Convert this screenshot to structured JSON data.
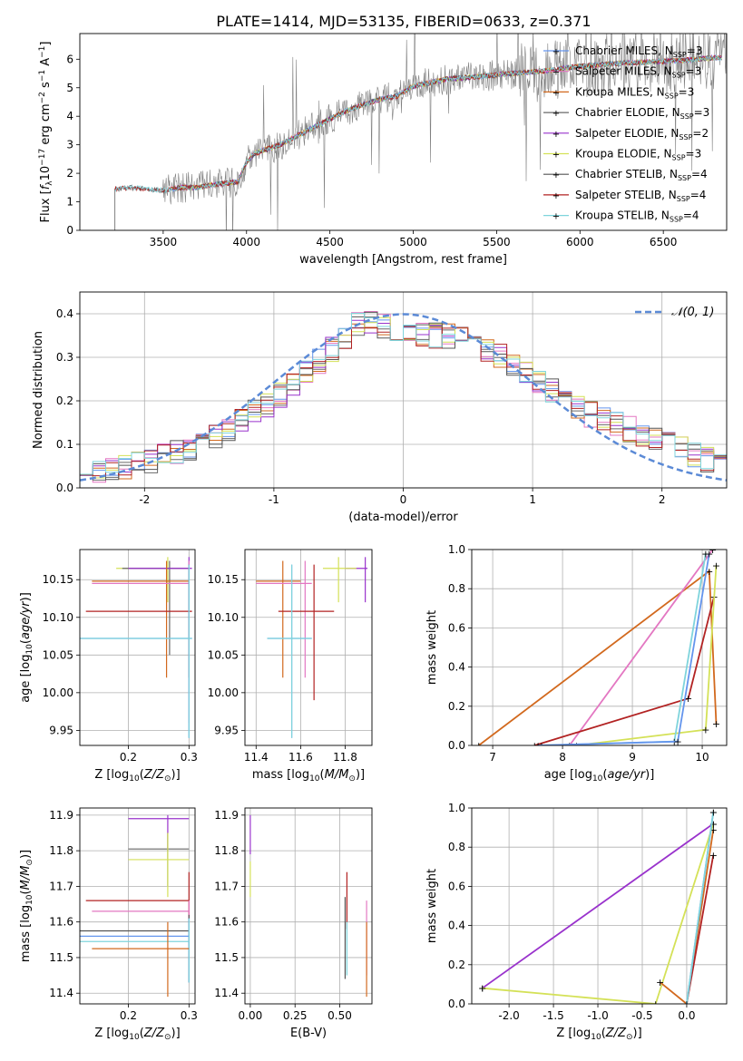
{
  "figure_title": "PLATE=1414, MJD=53135, FIBERID=0633, z=0.371",
  "colors": {
    "Chabrier MILES": "#6495ed",
    "Salpeter MILES": "#e377c2",
    "Kroupa MILES": "#d2691e",
    "Chabrier ELODIE": "#696969",
    "Salpeter ELODIE": "#9932cc",
    "Kroupa ELODIE": "#d4e157",
    "Chabrier STELIB": "#555555",
    "Salpeter STELIB": "#b22222",
    "Kroupa STELIB": "#7fd4dc",
    "normal": "#5b8ad6",
    "grid": "#b0b0b0",
    "data": "#808080"
  },
  "chart_data": [
    {
      "id": "spectrum",
      "type": "line",
      "title": "PLATE=1414, MJD=53135, FIBERID=0633, z=0.371",
      "xlabel": "wavelength [Angstrom, rest frame]",
      "ylabel": "Flux [fλ10⁻¹⁷ erg cm⁻² s⁻¹ A⁻¹]",
      "xlim": [
        3000,
        6880
      ],
      "ylim": [
        0,
        6.9
      ],
      "xticks": [
        3500,
        4000,
        4500,
        5000,
        5500,
        6000,
        6500
      ],
      "yticks": [
        0,
        1,
        2,
        3,
        4,
        5,
        6
      ],
      "grid": false,
      "legend_position": "top-right",
      "continuum_points": [
        [
          3210,
          1.45
        ],
        [
          3300,
          1.5
        ],
        [
          3400,
          1.45
        ],
        [
          3500,
          1.4
        ],
        [
          3600,
          1.5
        ],
        [
          3700,
          1.5
        ],
        [
          3800,
          1.6
        ],
        [
          3950,
          1.7
        ],
        [
          4000,
          2.4
        ],
        [
          4050,
          2.7
        ],
        [
          4200,
          3.0
        ],
        [
          4400,
          3.6
        ],
        [
          4600,
          4.2
        ],
        [
          4800,
          4.6
        ],
        [
          4900,
          4.7
        ],
        [
          5000,
          5.05
        ],
        [
          5200,
          5.3
        ],
        [
          5400,
          5.4
        ],
        [
          5600,
          5.5
        ],
        [
          5800,
          5.6
        ],
        [
          6000,
          5.75
        ],
        [
          6200,
          5.85
        ],
        [
          6400,
          5.9
        ],
        [
          6600,
          5.95
        ],
        [
          6800,
          6.05
        ]
      ],
      "legend": [
        "Chabrier MILES, N_SSP=3",
        "Salpeter MILES, N_SSP=3",
        "Kroupa MILES, N_SSP=3",
        "Chabrier ELODIE, N_SSP=3",
        "Salpeter ELODIE, N_SSP=2",
        "Kroupa ELODIE, N_SSP=3",
        "Chabrier STELIB, N_SSP=4",
        "Salpeter STELIB, N_SSP=4",
        "Kroupa STELIB, N_SSP=4"
      ],
      "legend_labels": [
        {
          "name": "Chabrier MILES, N",
          "sub": "SSP",
          "tail": "=3"
        },
        {
          "name": "Salpeter MILES, N",
          "sub": "SSP",
          "tail": "=3"
        },
        {
          "name": "Kroupa MILES, N",
          "sub": "SSP",
          "tail": "=3"
        },
        {
          "name": "Chabrier ELODIE, N",
          "sub": "SSP",
          "tail": "=3"
        },
        {
          "name": "Salpeter ELODIE, N",
          "sub": "SSP",
          "tail": "=2"
        },
        {
          "name": "Kroupa ELODIE, N",
          "sub": "SSP",
          "tail": "=3"
        },
        {
          "name": "Chabrier STELIB, N",
          "sub": "SSP",
          "tail": "=4"
        },
        {
          "name": "Salpeter STELIB, N",
          "sub": "SSP",
          "tail": "=4"
        },
        {
          "name": "Kroupa STELIB, N",
          "sub": "SSP",
          "tail": "=4"
        }
      ]
    },
    {
      "id": "residuals",
      "type": "line",
      "xlabel": "(data-model)/error",
      "ylabel": "Normed distribution",
      "xlim": [
        -2.5,
        2.5
      ],
      "ylim": [
        0,
        0.45
      ],
      "xticks": [
        -2,
        -1,
        0,
        1,
        2
      ],
      "yticks": [
        0.0,
        0.1,
        0.2,
        0.3,
        0.4
      ],
      "grid": true,
      "legend": [
        "𝒩(0, 1)"
      ],
      "legend_position": "top-right",
      "histogram_envelope": [
        [
          -2.5,
          0.035
        ],
        [
          -2.0,
          0.055
        ],
        [
          -1.5,
          0.11
        ],
        [
          -1.0,
          0.2
        ],
        [
          -0.5,
          0.33
        ],
        [
          -0.3,
          0.39
        ],
        [
          0.0,
          0.35
        ],
        [
          0.5,
          0.35
        ],
        [
          1.0,
          0.25
        ],
        [
          1.5,
          0.16
        ],
        [
          2.0,
          0.11
        ],
        [
          2.5,
          0.045
        ]
      ]
    },
    {
      "id": "age_vs_Z",
      "type": "scatter",
      "xlabel": "Z [log10(Z/Z☉)]",
      "ylabel": "age [log10(age/yr)]",
      "xlim": [
        0.12,
        0.31
      ],
      "ylim": [
        9.93,
        10.19
      ],
      "xticks": [
        0.2,
        0.3
      ],
      "yticks": [
        9.95,
        10.0,
        10.05,
        10.1,
        10.15
      ],
      "grid": true,
      "points": [
        {
          "series": "Kroupa ELODIE",
          "x": 0.265,
          "y": 10.165,
          "xerr": [
            0.18,
            0.3
          ],
          "yerr": [
            10.12,
            10.18
          ]
        },
        {
          "series": "Chabrier ELODIE",
          "x": 0.268,
          "y": 10.165,
          "xerr": [
            0.19,
            0.3
          ],
          "yerr": [
            10.05,
            10.175
          ]
        },
        {
          "series": "Salpeter ELODIE",
          "x": 0.3,
          "y": 10.165,
          "xerr": [
            0.2,
            0.305
          ],
          "yerr": [
            10.02,
            10.18
          ]
        },
        {
          "series": "Kroupa MILES",
          "x": 0.263,
          "y": 10.148,
          "xerr": [
            0.14,
            0.3
          ],
          "yerr": [
            10.02,
            10.175
          ]
        },
        {
          "series": "Salpeter MILES",
          "x": 0.3,
          "y": 10.145,
          "xerr": [
            0.14,
            0.3
          ],
          "yerr": [
            9.96,
            10.175
          ]
        },
        {
          "series": "Salpeter STELIB",
          "x": 0.3,
          "y": 10.108,
          "xerr": [
            0.13,
            0.305
          ],
          "yerr": [
            10.02,
            10.17
          ]
        },
        {
          "series": "Chabrier MILES",
          "x": 0.3,
          "y": 10.072,
          "xerr": [
            0.12,
            0.305
          ],
          "yerr": [
            9.94,
            10.17
          ]
        },
        {
          "series": "Kroupa STELIB",
          "x": 0.3,
          "y": 10.072,
          "xerr": [
            0.12,
            0.305
          ],
          "yerr": [
            9.94,
            10.17
          ]
        }
      ]
    },
    {
      "id": "age_vs_mass",
      "type": "scatter",
      "xlabel": "mass [log10(M/M☉)]",
      "ylabel": "",
      "xlim": [
        11.35,
        11.92
      ],
      "ylim": [
        9.93,
        10.19
      ],
      "xticks": [
        11.4,
        11.6,
        11.8
      ],
      "yticks": [
        9.95,
        10.0,
        10.05,
        10.1,
        10.15
      ],
      "grid": true,
      "points": [
        {
          "series": "Salpeter ELODIE",
          "x": 11.89,
          "y": 10.165,
          "xerr": [
            11.8,
            11.9
          ],
          "yerr": [
            10.12,
            10.18
          ]
        },
        {
          "series": "Kroupa ELODIE",
          "x": 11.77,
          "y": 10.165,
          "xerr": [
            11.7,
            11.85
          ],
          "yerr": [
            10.12,
            10.18
          ]
        },
        {
          "series": "Kroupa MILES",
          "x": 11.52,
          "y": 10.148,
          "xerr": [
            11.4,
            11.6
          ],
          "yerr": [
            10.02,
            10.175
          ]
        },
        {
          "series": "Salpeter MILES",
          "x": 11.62,
          "y": 10.145,
          "xerr": [
            11.4,
            11.65
          ],
          "yerr": [
            10.02,
            10.175
          ]
        },
        {
          "series": "Salpeter STELIB",
          "x": 11.66,
          "y": 10.108,
          "xerr": [
            11.5,
            11.75
          ],
          "yerr": [
            9.99,
            10.17
          ]
        },
        {
          "series": "Chabrier MILES",
          "x": 11.56,
          "y": 10.072,
          "xerr": [
            11.45,
            11.65
          ],
          "yerr": [
            9.94,
            10.17
          ]
        },
        {
          "series": "Kroupa STELIB",
          "x": 11.56,
          "y": 10.072,
          "xerr": [
            11.45,
            11.65
          ],
          "yerr": [
            9.94,
            10.17
          ]
        }
      ]
    },
    {
      "id": "weight_vs_age",
      "type": "line",
      "xlabel": "age [log10(age/yr)]",
      "ylabel": "mass weight",
      "xlim": [
        6.7,
        10.35
      ],
      "ylim": [
        0,
        1.0
      ],
      "xticks": [
        7,
        8,
        9,
        10
      ],
      "yticks": [
        0.0,
        0.2,
        0.4,
        0.6,
        0.8,
        1.0
      ],
      "grid": true,
      "series": [
        {
          "name": "Kroupa MILES",
          "points": [
            [
              6.8,
              0.0
            ],
            [
              10.1,
              0.89
            ],
            [
              10.2,
              0.11
            ]
          ]
        },
        {
          "name": "Salpeter MILES",
          "points": [
            [
              8.1,
              0.0
            ],
            [
              10.15,
              1.0
            ]
          ]
        },
        {
          "name": "Salpeter STELIB",
          "points": [
            [
              7.6,
              0.0
            ],
            [
              9.8,
              0.24
            ],
            [
              10.17,
              0.76
            ]
          ]
        },
        {
          "name": "Kroupa ELODIE",
          "points": [
            [
              8.2,
              0.0
            ],
            [
              10.05,
              0.08
            ],
            [
              10.2,
              0.92
            ]
          ]
        },
        {
          "name": "Kroupa STELIB",
          "points": [
            [
              7.7,
              0.0
            ],
            [
              9.6,
              0.02
            ],
            [
              10.05,
              0.98
            ]
          ]
        },
        {
          "name": "Chabrier MILES",
          "points": [
            [
              7.65,
              0.0
            ],
            [
              9.65,
              0.02
            ],
            [
              10.1,
              0.98
            ]
          ]
        }
      ]
    },
    {
      "id": "mass_vs_Z",
      "type": "scatter",
      "xlabel": "Z [log10(Z/Z☉)]",
      "ylabel": "mass [log10(M/M☉)]",
      "xlim": [
        0.12,
        0.31
      ],
      "ylim": [
        11.37,
        11.92
      ],
      "xticks": [
        0.2,
        0.3
      ],
      "yticks": [
        11.4,
        11.5,
        11.6,
        11.7,
        11.8,
        11.9
      ],
      "grid": true,
      "points": [
        {
          "series": "Salpeter ELODIE",
          "x": 0.265,
          "y": 11.89,
          "xerr": [
            0.2,
            0.3
          ],
          "yerr": [
            11.8,
            11.9
          ]
        },
        {
          "series": "Chabrier ELODIE",
          "x": 0.265,
          "y": 11.805,
          "xerr": [
            0.2,
            0.3
          ],
          "yerr": [
            11.7,
            11.85
          ]
        },
        {
          "series": "Kroupa ELODIE",
          "x": 0.265,
          "y": 11.775,
          "xerr": [
            0.2,
            0.3
          ],
          "yerr": [
            11.67,
            11.85
          ]
        },
        {
          "series": "Salpeter STELIB",
          "x": 0.3,
          "y": 11.66,
          "xerr": [
            0.13,
            0.3
          ],
          "yerr": [
            11.58,
            11.74
          ]
        },
        {
          "series": "Salpeter MILES",
          "x": 0.3,
          "y": 11.63,
          "xerr": [
            0.14,
            0.3
          ],
          "yerr": [
            11.43,
            11.66
          ]
        },
        {
          "series": "Chabrier STELIB",
          "x": 0.3,
          "y": 11.575,
          "xerr": [
            0.12,
            0.3
          ],
          "yerr": [
            11.43,
            11.62
          ]
        },
        {
          "series": "Chabrier MILES",
          "x": 0.3,
          "y": 11.56,
          "xerr": [
            0.12,
            0.3
          ],
          "yerr": [
            11.43,
            11.61
          ]
        },
        {
          "series": "Kroupa STELIB",
          "x": 0.3,
          "y": 11.545,
          "xerr": [
            0.12,
            0.3
          ],
          "yerr": [
            11.43,
            11.61
          ]
        },
        {
          "series": "Kroupa MILES",
          "x": 0.265,
          "y": 11.525,
          "xerr": [
            0.14,
            0.3
          ],
          "yerr": [
            11.39,
            11.6
          ]
        }
      ]
    },
    {
      "id": "mass_vs_EBV",
      "type": "scatter",
      "xlabel": "E(B-V)",
      "ylabel": "",
      "xlim": [
        -0.03,
        0.68
      ],
      "ylim": [
        11.37,
        11.92
      ],
      "xticks": [
        0.0,
        0.25,
        0.5
      ],
      "xticklabels": [
        "0.00",
        "0.25",
        "0.50"
      ],
      "yticks": [
        11.4,
        11.5,
        11.6,
        11.7,
        11.8,
        11.9
      ],
      "grid": true,
      "points": [
        {
          "series": "Salpeter ELODIE",
          "x": 0.0,
          "y": 11.83,
          "yerr": [
            11.79,
            11.9
          ]
        },
        {
          "series": "Kroupa ELODIE",
          "x": 0.0,
          "y": 11.72,
          "yerr": [
            11.67,
            11.77
          ]
        },
        {
          "series": "Salpeter STELIB",
          "x": 0.54,
          "y": 11.66,
          "yerr": [
            11.58,
            11.74
          ]
        },
        {
          "series": "Chabrier STELIB",
          "x": 0.53,
          "y": 11.58,
          "yerr": [
            11.44,
            11.67
          ]
        },
        {
          "series": "Kroupa STELIB",
          "x": 0.54,
          "y": 11.54,
          "yerr": [
            11.45,
            11.6
          ]
        },
        {
          "series": "Salpeter MILES",
          "x": 0.65,
          "y": 11.6,
          "yerr": [
            11.45,
            11.66
          ]
        },
        {
          "series": "Kroupa MILES",
          "x": 0.65,
          "y": 11.52,
          "yerr": [
            11.39,
            11.6
          ]
        }
      ]
    },
    {
      "id": "weight_vs_Z",
      "type": "line",
      "xlabel": "Z [log10(Z/Z☉)]",
      "ylabel": "mass weight",
      "xlim": [
        -2.42,
        0.45
      ],
      "ylim": [
        0,
        1.0
      ],
      "xticks": [
        -2.0,
        -1.5,
        -1.0,
        -0.5,
        0.0
      ],
      "yticks": [
        0.0,
        0.2,
        0.4,
        0.6,
        0.8,
        1.0
      ],
      "grid": true,
      "series": [
        {
          "name": "Salpeter ELODIE",
          "points": [
            [
              -2.3,
              0.08
            ],
            [
              0.3,
              0.92
            ]
          ]
        },
        {
          "name": "Kroupa ELODIE",
          "points": [
            [
              -2.3,
              0.08
            ],
            [
              -0.35,
              0.0
            ],
            [
              0.3,
              0.92
            ]
          ]
        },
        {
          "name": "Kroupa MILES",
          "points": [
            [
              -0.3,
              0.11
            ],
            [
              0.0,
              0.0
            ],
            [
              0.3,
              0.89
            ]
          ]
        },
        {
          "name": "Salpeter STELIB",
          "points": [
            [
              0.0,
              0.0
            ],
            [
              0.3,
              0.76
            ]
          ]
        },
        {
          "name": "Chabrier MILES",
          "points": [
            [
              0.0,
              0.0
            ],
            [
              0.3,
              0.98
            ]
          ]
        },
        {
          "name": "Kroupa STELIB",
          "points": [
            [
              0.0,
              0.0
            ],
            [
              0.3,
              0.98
            ]
          ]
        }
      ]
    }
  ]
}
